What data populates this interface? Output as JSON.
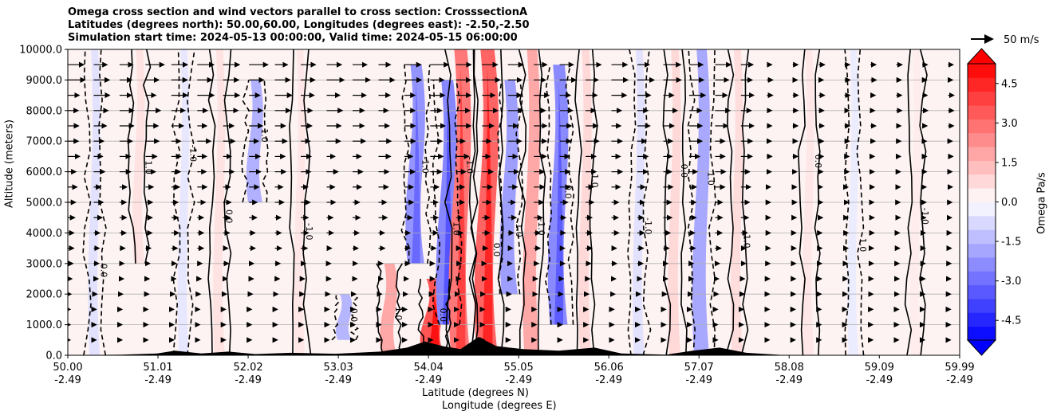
{
  "chart_data": {
    "type": "heatmap",
    "title_lines": [
      "Omega cross section and wind vectors parallel to cross section: CrosssectionA",
      "Latitudes (degrees north): 50.00,60.00, Longitudes (degrees east): -2.50,-2.50",
      "Simulation start time: 2024-05-13 00:00:00, Valid time: 2024-05-15 06:00:00"
    ],
    "ylabel": "Altitude (meters)",
    "xlabel_line1": "Latitude (degrees N)",
    "xlabel_line2": "Longitude (degrees E)",
    "ylim": [
      0,
      10000
    ],
    "xlim": [
      50.0,
      59.99
    ],
    "y_ticks": [
      "0.0",
      "1000.0",
      "2000.0",
      "3000.0",
      "4000.0",
      "5000.0",
      "6000.0",
      "7000.0",
      "8000.0",
      "9000.0",
      "10000.0"
    ],
    "x_ticks": [
      {
        "lat": "50.00",
        "lon": "-2.49"
      },
      {
        "lat": "51.01",
        "lon": "-2.49"
      },
      {
        "lat": "52.02",
        "lon": "-2.49"
      },
      {
        "lat": "53.03",
        "lon": "-2.49"
      },
      {
        "lat": "54.04",
        "lon": "-2.49"
      },
      {
        "lat": "55.05",
        "lon": "-2.49"
      },
      {
        "lat": "56.06",
        "lon": "-2.49"
      },
      {
        "lat": "57.07",
        "lon": "-2.49"
      },
      {
        "lat": "58.08",
        "lon": "-2.49"
      },
      {
        "lat": "59.09",
        "lon": "-2.49"
      },
      {
        "lat": "59.99",
        "lon": "-2.49"
      }
    ],
    "grid": "horizontal",
    "colorbar": {
      "label": "Omega Pa/s",
      "range": [
        -5.25,
        5.25
      ],
      "extend": "both",
      "ticks": [
        "-4.5",
        "-3.0",
        "-1.5",
        "0.0",
        "1.5",
        "3.0",
        "4.5"
      ],
      "cmap": "bwr"
    },
    "reference_vector": "50 m/s",
    "contour_labels": [
      "0.0",
      "1.0",
      "-1.0"
    ],
    "omega_bands": [
      {
        "lat": 50.3,
        "alt_low": 0,
        "alt_high": 10000,
        "omega": -0.6
      },
      {
        "lat": 50.8,
        "alt_low": 3000,
        "alt_high": 10000,
        "omega": 0.6
      },
      {
        "lat": 51.3,
        "alt_low": 0,
        "alt_high": 10000,
        "omega": -0.5
      },
      {
        "lat": 51.7,
        "alt_low": 0,
        "alt_high": 10000,
        "omega": 0.6
      },
      {
        "lat": 52.1,
        "alt_low": 5000,
        "alt_high": 9000,
        "omega": -1.6
      },
      {
        "lat": 52.6,
        "alt_low": 0,
        "alt_high": 10000,
        "omega": 0.5
      },
      {
        "lat": 53.1,
        "alt_low": 500,
        "alt_high": 2000,
        "omega": -1.5
      },
      {
        "lat": 53.6,
        "alt_low": 0,
        "alt_high": 3000,
        "omega": 1.8
      },
      {
        "lat": 53.9,
        "alt_low": 3000,
        "alt_high": 9500,
        "omega": -2.2
      },
      {
        "lat": 54.1,
        "alt_low": 0,
        "alt_high": 2500,
        "omega": 3.5
      },
      {
        "lat": 54.25,
        "alt_low": 1000,
        "alt_high": 9000,
        "omega": -2.5
      },
      {
        "lat": 54.4,
        "alt_low": 0,
        "alt_high": 10000,
        "omega": 2.8
      },
      {
        "lat": 54.7,
        "alt_low": 0,
        "alt_high": 10000,
        "omega": 3.2
      },
      {
        "lat": 54.95,
        "alt_low": 2000,
        "alt_high": 9000,
        "omega": -2.0
      },
      {
        "lat": 55.2,
        "alt_low": 0,
        "alt_high": 10000,
        "omega": 1.8
      },
      {
        "lat": 55.5,
        "alt_low": 1000,
        "alt_high": 9500,
        "omega": -2.4
      },
      {
        "lat": 55.8,
        "alt_low": 0,
        "alt_high": 10000,
        "omega": 0.8
      },
      {
        "lat": 56.4,
        "alt_low": 0,
        "alt_high": 10000,
        "omega": -0.6
      },
      {
        "lat": 56.8,
        "alt_low": 0,
        "alt_high": 10000,
        "omega": 0.8
      },
      {
        "lat": 57.1,
        "alt_low": 0,
        "alt_high": 10000,
        "omega": -1.8
      },
      {
        "lat": 57.5,
        "alt_low": 0,
        "alt_high": 10000,
        "omega": 0.7
      },
      {
        "lat": 58.3,
        "alt_low": 0,
        "alt_high": 10000,
        "omega": 0.5
      },
      {
        "lat": 58.8,
        "alt_low": 0,
        "alt_high": 10000,
        "omega": -0.4
      },
      {
        "lat": 59.5,
        "alt_low": 0,
        "alt_high": 10000,
        "omega": 0.4
      }
    ],
    "terrain": [
      {
        "lat": 50.0,
        "alt": 0
      },
      {
        "lat": 50.6,
        "alt": 20
      },
      {
        "lat": 51.0,
        "alt": 60
      },
      {
        "lat": 51.2,
        "alt": 150
      },
      {
        "lat": 51.5,
        "alt": 60
      },
      {
        "lat": 51.8,
        "alt": 120
      },
      {
        "lat": 52.1,
        "alt": 40
      },
      {
        "lat": 52.5,
        "alt": 80
      },
      {
        "lat": 53.0,
        "alt": 50
      },
      {
        "lat": 53.5,
        "alt": 120
      },
      {
        "lat": 53.8,
        "alt": 250
      },
      {
        "lat": 54.0,
        "alt": 450
      },
      {
        "lat": 54.2,
        "alt": 300
      },
      {
        "lat": 54.4,
        "alt": 200
      },
      {
        "lat": 54.6,
        "alt": 600
      },
      {
        "lat": 54.8,
        "alt": 300
      },
      {
        "lat": 55.1,
        "alt": 200
      },
      {
        "lat": 55.5,
        "alt": 150
      },
      {
        "lat": 55.9,
        "alt": 250
      },
      {
        "lat": 56.2,
        "alt": 60
      },
      {
        "lat": 56.7,
        "alt": 20
      },
      {
        "lat": 57.0,
        "alt": 150
      },
      {
        "lat": 57.3,
        "alt": 250
      },
      {
        "lat": 57.6,
        "alt": 80
      },
      {
        "lat": 58.0,
        "alt": 10
      },
      {
        "lat": 59.99,
        "alt": 0
      }
    ]
  }
}
